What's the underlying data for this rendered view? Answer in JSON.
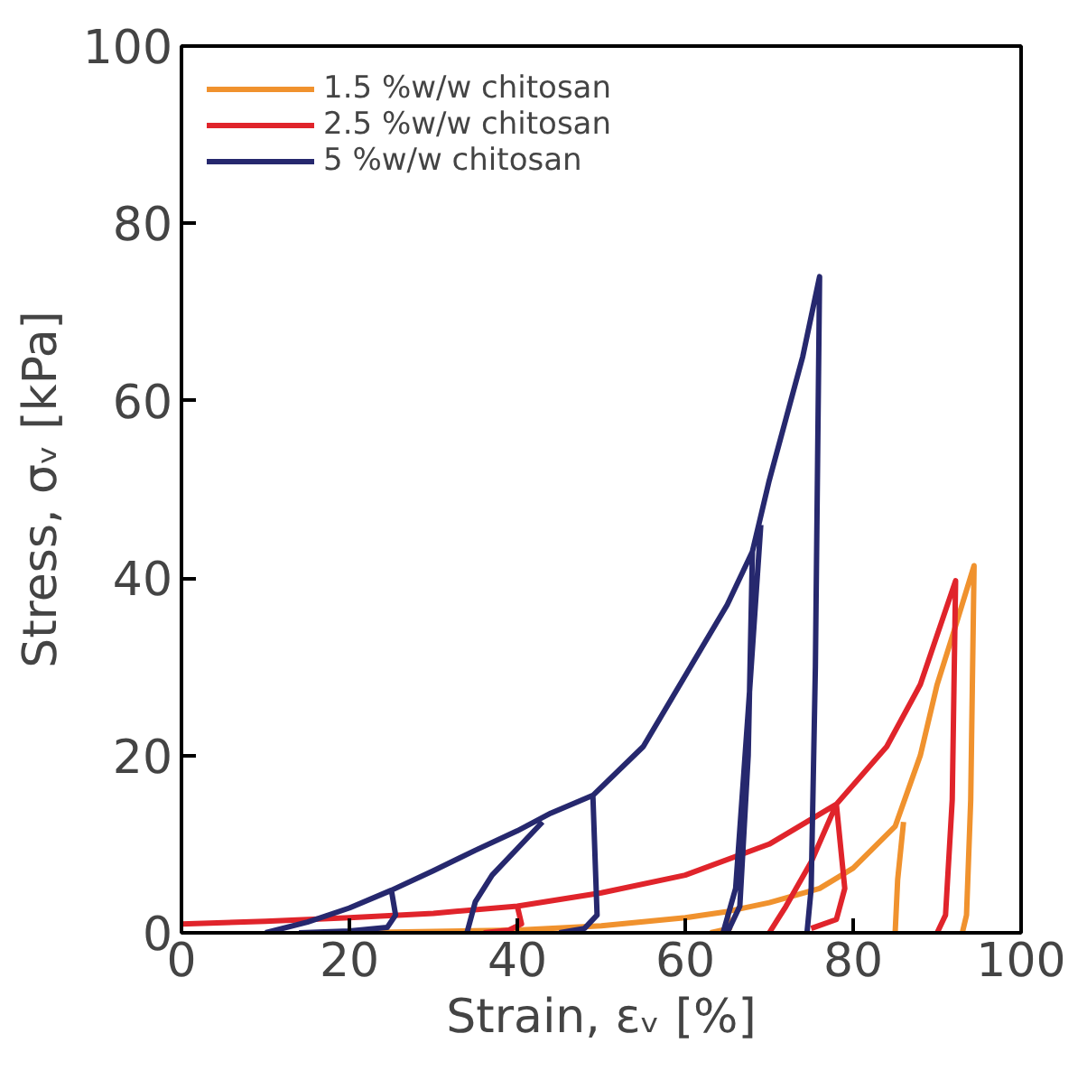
{
  "chart_data": {
    "type": "line",
    "xlabel": "Strain, εᵥ [%]",
    "ylabel": "Stress, σᵥ [kPa]",
    "xlim": [
      0,
      100
    ],
    "ylim": [
      0,
      100
    ],
    "xticks": [
      0,
      20,
      40,
      60,
      80,
      100
    ],
    "yticks": [
      0,
      20,
      40,
      60,
      80,
      100
    ],
    "grid": false,
    "legend": "top left",
    "line_style": "solid",
    "marker": "none",
    "series": [
      {
        "name": "1.5 %w/w chitosan",
        "color": "#f0922e",
        "x": [
          20,
          40,
          50,
          60,
          65,
          70,
          76,
          80,
          85,
          88,
          90,
          92,
          94.4,
          94,
          93.5,
          93,
          null,
          85,
          85.3,
          86,
          null,
          65,
          65.3,
          63
        ],
        "values": [
          0,
          0.3,
          0.8,
          1.7,
          2.4,
          3.4,
          5,
          7.3,
          12,
          20,
          28,
          34,
          41.4,
          15,
          2,
          0,
          null,
          0,
          6,
          12.5,
          null,
          2.4,
          0.5,
          0
        ]
      },
      {
        "name": "2.5 %w/w chitosan",
        "color": "#e0242b",
        "x": [
          0,
          10,
          20,
          30,
          40,
          50,
          60,
          70,
          78,
          84,
          88,
          92.2,
          91.8,
          91,
          90,
          null,
          40,
          40.5,
          39,
          36,
          null,
          70,
          72,
          75,
          78,
          79,
          78,
          75
        ],
        "values": [
          1,
          1.3,
          1.7,
          2.2,
          3,
          4.5,
          6.5,
          10,
          14.5,
          21,
          28,
          39.7,
          15,
          2,
          0,
          null,
          3,
          1,
          0.3,
          0,
          null,
          0,
          3,
          8,
          14.5,
          5,
          1.5,
          0.5
        ]
      },
      {
        "name": "5 %w/w chitosan",
        "color": "#26286e",
        "x": [
          10,
          15,
          20,
          25,
          30,
          35,
          40,
          44,
          49,
          55,
          60,
          65,
          68,
          70,
          72,
          74,
          76,
          75.5,
          75,
          74.5,
          null,
          25,
          25.5,
          24.5,
          20,
          14,
          null,
          34,
          35,
          37,
          40,
          43,
          null,
          49,
          49.5,
          48,
          45,
          null,
          68,
          67.5,
          66.5,
          65,
          null,
          64.5,
          66,
          67.5,
          69
        ],
        "values": [
          0,
          1.2,
          2.8,
          4.8,
          7,
          9.3,
          11.5,
          13.5,
          15.5,
          21,
          29,
          37,
          43,
          51,
          58,
          65,
          74,
          30,
          5,
          0,
          null,
          4.8,
          2,
          0.6,
          0.2,
          0,
          null,
          0,
          3.5,
          6.5,
          9.5,
          12.5,
          null,
          15.5,
          2,
          0.5,
          0,
          null,
          43,
          20,
          3,
          0,
          null,
          0,
          5,
          25,
          46
        ]
      }
    ]
  }
}
